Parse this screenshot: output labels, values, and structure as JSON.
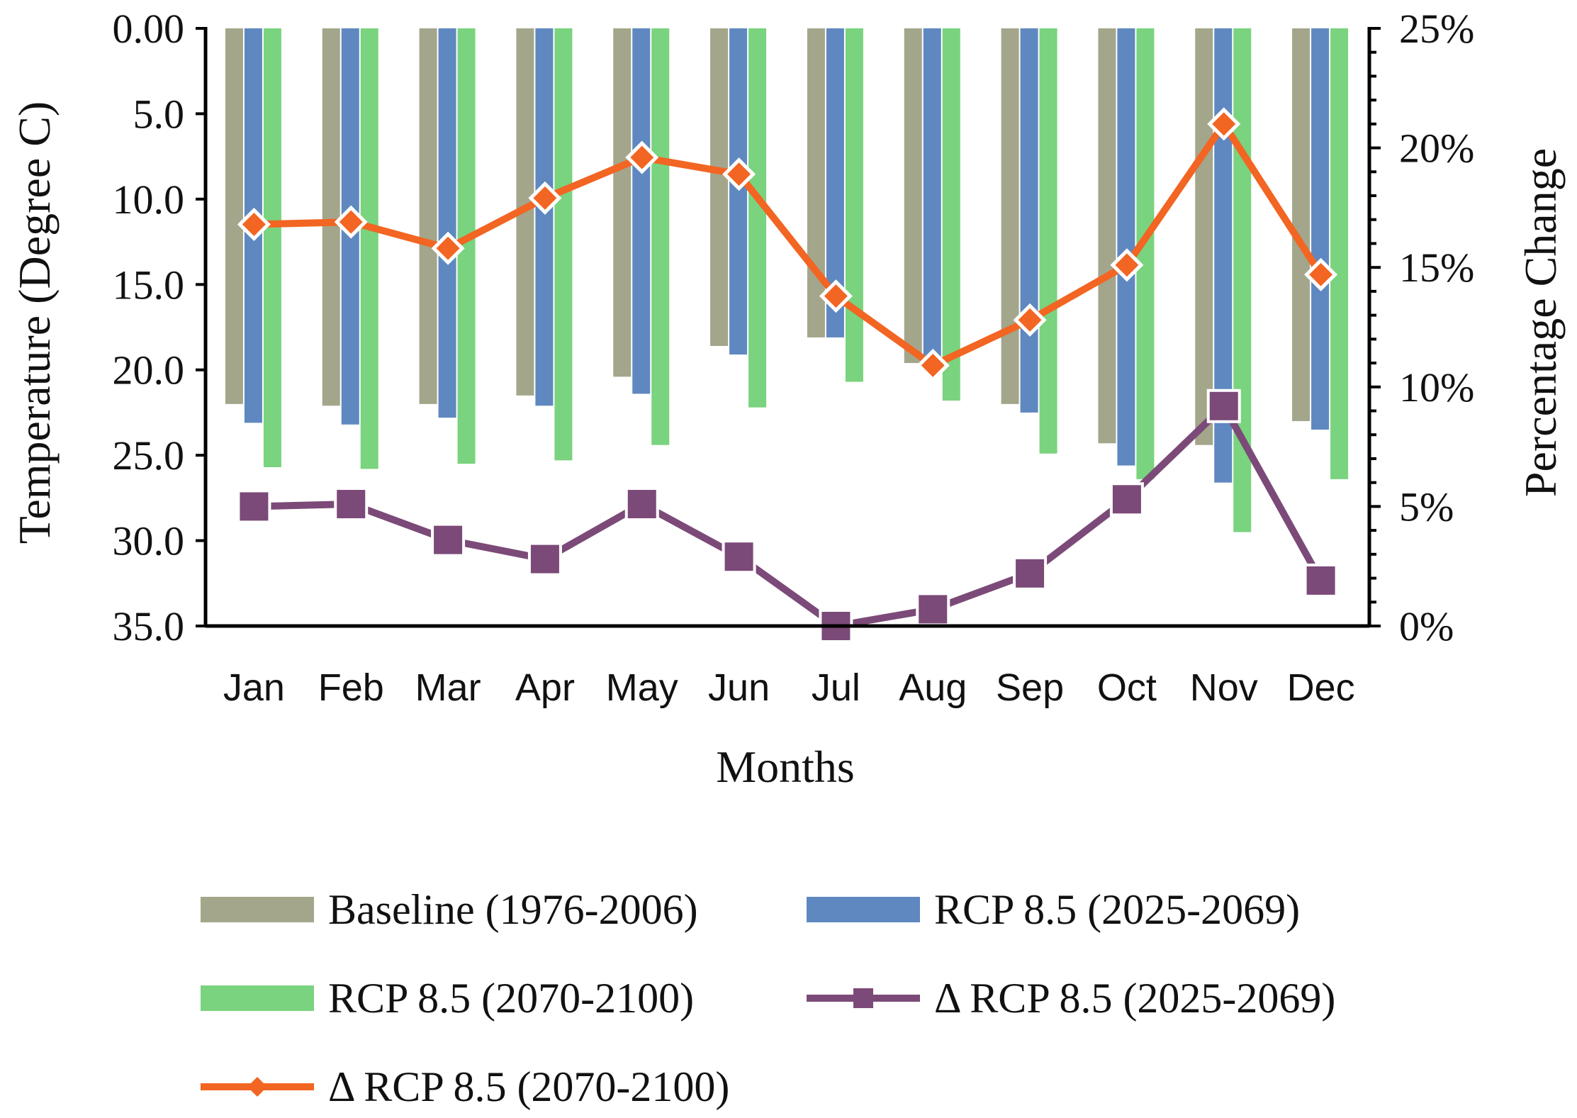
{
  "chart_data": {
    "type": "bar",
    "title": "",
    "categories": [
      "Jan",
      "Feb",
      "Mar",
      "Apr",
      "May",
      "Jun",
      "Jul",
      "Aug",
      "Sep",
      "Oct",
      "Nov",
      "Dec"
    ],
    "xlabel": "Months",
    "ylabel": "Temperature (Degree C)",
    "y2label": "Percentage Change",
    "ylim": [
      35.0,
      0.0
    ],
    "y_inverted": true,
    "y_ticks": [
      "0.00",
      "5.0",
      "10.0",
      "15.0",
      "20.0",
      "25.0",
      "30.0",
      "35.0"
    ],
    "y2lim": [
      0,
      25
    ],
    "y2_ticks": [
      "0%",
      "5%",
      "10%",
      "15%",
      "20%",
      "25%"
    ],
    "grid": false,
    "legend_position": "bottom",
    "series": [
      {
        "name": "Baseline (1976-2006)",
        "kind": "bar",
        "axis": "left",
        "color": "#a3a68a",
        "values": [
          22.0,
          22.1,
          22.0,
          21.5,
          20.4,
          18.6,
          18.1,
          19.6,
          22.0,
          24.3,
          24.4,
          23.0
        ]
      },
      {
        "name": "RCP 8.5 (2025-2069)",
        "kind": "bar",
        "axis": "left",
        "color": "#5f88c0",
        "values": [
          23.1,
          23.2,
          22.8,
          22.1,
          21.4,
          19.1,
          18.1,
          19.7,
          22.5,
          25.6,
          26.6,
          23.5
        ]
      },
      {
        "name": "RCP 8.5 (2070-2100)",
        "kind": "bar",
        "axis": "left",
        "color": "#7ad37e",
        "values": [
          25.7,
          25.8,
          25.5,
          25.3,
          24.4,
          22.2,
          20.7,
          21.8,
          24.9,
          26.4,
          29.5,
          26.4
        ]
      },
      {
        "name": "Δ RCP 8.5 (2025-2069)",
        "kind": "line",
        "axis": "right",
        "marker": "square",
        "color": "#7b4a78",
        "values": [
          5.0,
          5.1,
          3.6,
          2.8,
          5.1,
          2.9,
          0.0,
          0.7,
          2.2,
          5.3,
          9.2,
          1.9
        ]
      },
      {
        "name": "Δ  RCP 8.5 (2070-2100)",
        "kind": "line",
        "axis": "right",
        "marker": "diamond",
        "color": "#f26522",
        "values": [
          16.8,
          16.9,
          15.8,
          17.9,
          19.6,
          18.9,
          13.8,
          10.9,
          12.8,
          15.1,
          21.0,
          14.7
        ]
      }
    ]
  }
}
